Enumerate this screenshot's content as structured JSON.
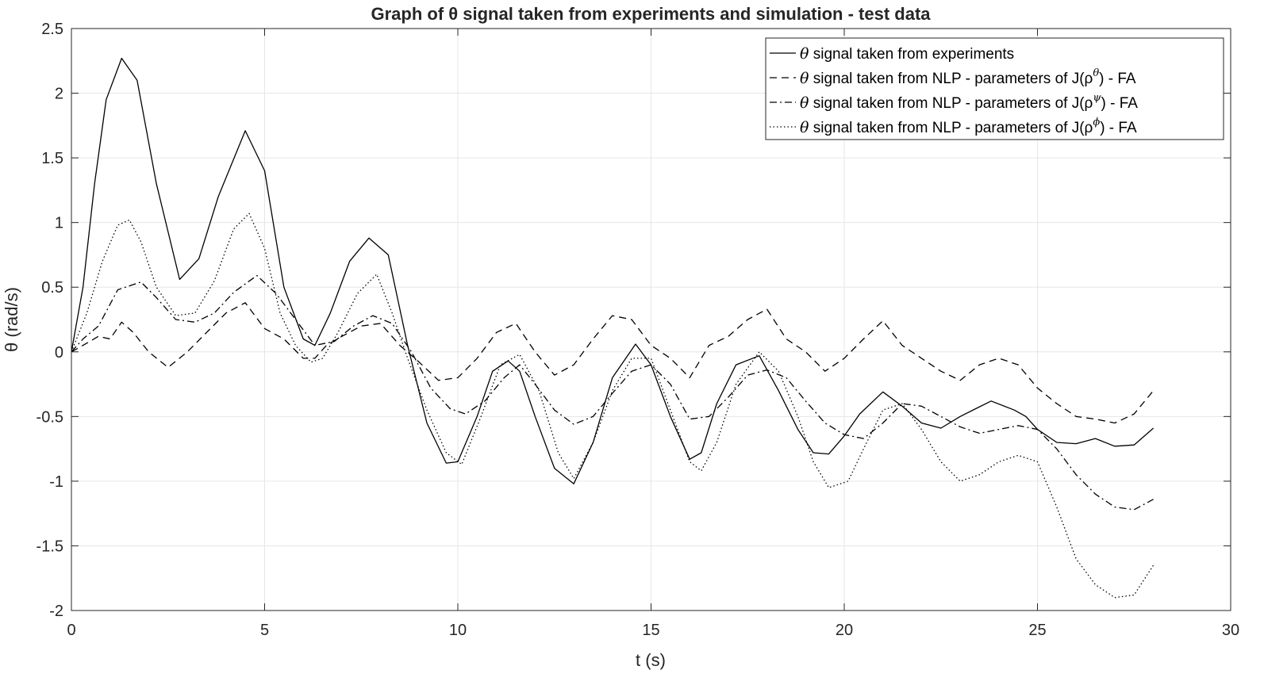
{
  "chart_data": {
    "type": "line",
    "title": "Graph of θ signal taken from experiments and simulation - test data",
    "xlabel": "t (s)",
    "ylabel": "θ (rad/s)",
    "xlim": [
      0,
      30
    ],
    "ylim": [
      -2,
      2.5
    ],
    "xticks": [
      0,
      5,
      10,
      15,
      20,
      25,
      30
    ],
    "yticks": [
      -2,
      -1.5,
      -1,
      -0.5,
      0,
      0.5,
      1,
      1.5,
      2,
      2.5
    ],
    "xtick_labels": [
      "0",
      "5",
      "10",
      "15",
      "20",
      "25",
      "30"
    ],
    "ytick_labels": [
      "-2",
      "-1.5",
      "-1",
      "-0.5",
      "0",
      "0.5",
      "1",
      "1.5",
      "2",
      "2.5"
    ],
    "grid": true,
    "legend_position": "top-right",
    "legend": [
      {
        "symbol": "θ",
        "text": " signal taken from experiments",
        "sup": "",
        "tail": ""
      },
      {
        "symbol": "θ",
        "text": " signal taken from NLP - parameters of J(ρ",
        "sup": "θ",
        "tail": ") - FA"
      },
      {
        "symbol": "θ",
        "text": " signal taken from NLP - parameters of J(ρ",
        "sup": "ψ",
        "tail": ") - FA"
      },
      {
        "symbol": "θ",
        "text": " signal taken from NLP - parameters of J(ρ",
        "sup": "ϕ",
        "tail": ") - FA"
      }
    ],
    "series": [
      {
        "style": "solid",
        "x": [
          0,
          0.3,
          0.6,
          0.9,
          1.3,
          1.7,
          2.2,
          2.8,
          3.3,
          3.8,
          4.5,
          5.0,
          5.5,
          6.0,
          6.3,
          6.7,
          7.2,
          7.7,
          8.2,
          8.7,
          9.2,
          9.7,
          10.0,
          10.5,
          10.9,
          11.3,
          11.6,
          12.0,
          12.5,
          13.0,
          13.5,
          14.0,
          14.6,
          15.0,
          15.5,
          16.0,
          16.3,
          16.7,
          17.2,
          17.8,
          18.3,
          18.8,
          19.2,
          19.6,
          20.0,
          20.4,
          21.0,
          21.5,
          22.0,
          22.5,
          23.0,
          23.4,
          23.8,
          24.4,
          24.7,
          25.0,
          25.5,
          26.0,
          26.5,
          27.0,
          27.5,
          28.0
        ],
        "y": [
          0,
          0.5,
          1.3,
          1.95,
          2.27,
          2.1,
          1.3,
          0.56,
          0.72,
          1.2,
          1.71,
          1.4,
          0.5,
          0.1,
          0.05,
          0.3,
          0.7,
          0.88,
          0.75,
          0.05,
          -0.55,
          -0.86,
          -0.85,
          -0.5,
          -0.15,
          -0.07,
          -0.15,
          -0.5,
          -0.9,
          -1.02,
          -0.7,
          -0.2,
          0.06,
          -0.1,
          -0.5,
          -0.83,
          -0.78,
          -0.4,
          -0.1,
          -0.03,
          -0.3,
          -0.6,
          -0.78,
          -0.79,
          -0.65,
          -0.48,
          -0.31,
          -0.42,
          -0.55,
          -0.59,
          -0.5,
          -0.44,
          -0.38,
          -0.45,
          -0.5,
          -0.6,
          -0.7,
          -0.71,
          -0.67,
          -0.73,
          -0.72,
          -0.59
        ]
      },
      {
        "style": "dashed",
        "x": [
          0,
          0.3,
          0.7,
          1.0,
          1.3,
          1.6,
          2.0,
          2.5,
          3.0,
          3.5,
          4.0,
          4.5,
          5.0,
          5.5,
          6.0,
          6.3,
          6.6,
          7.0,
          7.5,
          8.0,
          8.5,
          9.0,
          9.5,
          10.0,
          10.5,
          11.0,
          11.5,
          12.0,
          12.5,
          13.0,
          13.5,
          14.0,
          14.5,
          15.0,
          15.5,
          16.0,
          16.5,
          17.0,
          17.5,
          18.0,
          18.5,
          19.0,
          19.5,
          20.0,
          20.5,
          21.0,
          21.5,
          22.0,
          22.5,
          23.0,
          23.5,
          24.0,
          24.5,
          25.0,
          25.5,
          26.0,
          26.5,
          27.0,
          27.5,
          28.0
        ],
        "y": [
          0,
          0.05,
          0.12,
          0.1,
          0.23,
          0.15,
          0.0,
          -0.12,
          0.0,
          0.15,
          0.3,
          0.38,
          0.18,
          0.1,
          -0.05,
          -0.05,
          0.05,
          0.12,
          0.2,
          0.22,
          0.05,
          -0.08,
          -0.22,
          -0.2,
          -0.05,
          0.15,
          0.22,
          0.0,
          -0.18,
          -0.1,
          0.1,
          0.28,
          0.25,
          0.05,
          -0.05,
          -0.2,
          0.05,
          0.12,
          0.25,
          0.33,
          0.1,
          0.0,
          -0.15,
          -0.05,
          0.1,
          0.24,
          0.05,
          -0.05,
          -0.15,
          -0.22,
          -0.1,
          -0.05,
          -0.1,
          -0.28,
          -0.4,
          -0.5,
          -0.52,
          -0.55,
          -0.48,
          -0.3
        ]
      },
      {
        "style": "dashdot",
        "x": [
          0,
          0.3,
          0.7,
          1.2,
          1.8,
          2.2,
          2.7,
          3.2,
          3.7,
          4.2,
          4.8,
          5.3,
          5.8,
          6.3,
          6.8,
          7.3,
          7.8,
          8.3,
          8.8,
          9.3,
          9.8,
          10.2,
          10.7,
          11.2,
          11.6,
          12.0,
          12.5,
          13.0,
          13.5,
          14.0,
          14.5,
          15.0,
          15.5,
          16.0,
          16.5,
          17.0,
          17.5,
          18.0,
          18.5,
          19.0,
          19.5,
          20.0,
          20.5,
          21.0,
          21.5,
          22.0,
          22.5,
          23.0,
          23.5,
          24.0,
          24.5,
          25.0,
          25.5,
          26.0,
          26.5,
          27.0,
          27.5,
          28.0
        ],
        "y": [
          0,
          0.1,
          0.2,
          0.48,
          0.54,
          0.42,
          0.25,
          0.23,
          0.3,
          0.46,
          0.59,
          0.45,
          0.25,
          0.05,
          0.08,
          0.2,
          0.28,
          0.22,
          0.0,
          -0.28,
          -0.44,
          -0.48,
          -0.38,
          -0.2,
          -0.1,
          -0.25,
          -0.45,
          -0.56,
          -0.5,
          -0.32,
          -0.15,
          -0.1,
          -0.25,
          -0.52,
          -0.5,
          -0.35,
          -0.18,
          -0.14,
          -0.2,
          -0.38,
          -0.55,
          -0.64,
          -0.67,
          -0.55,
          -0.4,
          -0.42,
          -0.5,
          -0.58,
          -0.63,
          -0.6,
          -0.57,
          -0.6,
          -0.75,
          -0.95,
          -1.1,
          -1.2,
          -1.22,
          -1.14
        ]
      },
      {
        "style": "dotted",
        "x": [
          0,
          0.4,
          0.8,
          1.2,
          1.5,
          1.8,
          2.2,
          2.7,
          3.2,
          3.7,
          4.2,
          4.6,
          5.0,
          5.4,
          5.8,
          6.2,
          6.5,
          6.9,
          7.4,
          7.9,
          8.3,
          8.7,
          9.2,
          9.7,
          10.1,
          10.6,
          11.1,
          11.6,
          12.1,
          12.6,
          13.0,
          13.5,
          14.0,
          14.5,
          15.0,
          15.5,
          16.0,
          16.3,
          16.7,
          17.2,
          17.8,
          18.3,
          18.8,
          19.2,
          19.6,
          20.1,
          20.5,
          21.0,
          21.5,
          22.0,
          22.5,
          23.0,
          23.5,
          24.0,
          24.5,
          25.0,
          25.5,
          26.0,
          26.5,
          27.0,
          27.5,
          28.0
        ],
        "y": [
          0,
          0.3,
          0.7,
          0.98,
          1.02,
          0.85,
          0.5,
          0.28,
          0.3,
          0.55,
          0.95,
          1.07,
          0.8,
          0.3,
          0.05,
          -0.08,
          -0.05,
          0.15,
          0.45,
          0.6,
          0.3,
          -0.05,
          -0.45,
          -0.78,
          -0.87,
          -0.5,
          -0.1,
          -0.02,
          -0.3,
          -0.78,
          -0.98,
          -0.7,
          -0.3,
          -0.05,
          -0.05,
          -0.45,
          -0.85,
          -0.92,
          -0.7,
          -0.25,
          0.0,
          -0.15,
          -0.5,
          -0.85,
          -1.05,
          -1.0,
          -0.75,
          -0.45,
          -0.4,
          -0.6,
          -0.85,
          -1.0,
          -0.95,
          -0.85,
          -0.8,
          -0.85,
          -1.2,
          -1.6,
          -1.8,
          -1.9,
          -1.88,
          -1.65
        ]
      }
    ]
  }
}
